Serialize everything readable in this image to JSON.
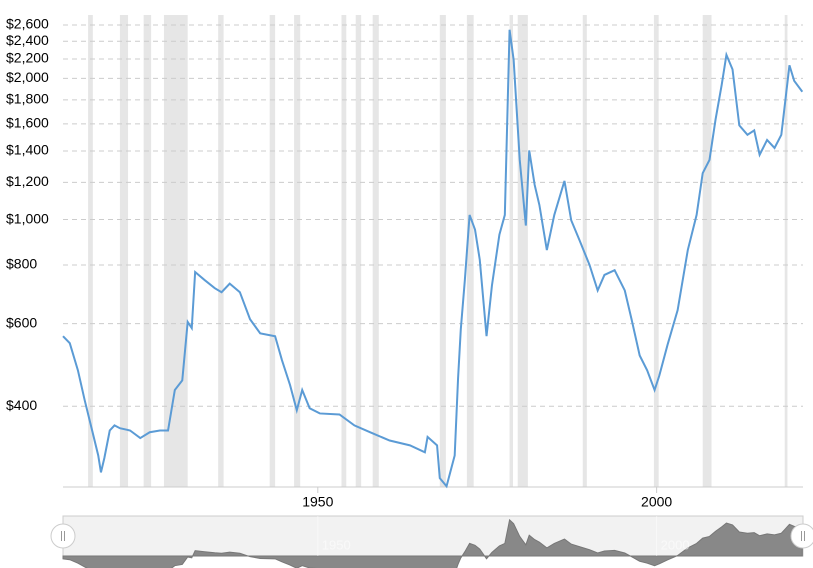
{
  "chart_data": {
    "type": "line",
    "log_scale": true,
    "grid": true,
    "xlim": [
      1912.4,
      2021.6
    ],
    "xticks": [
      1950,
      2000
    ],
    "ylim": [
      269,
      2730
    ],
    "yticks": [
      {
        "value": 400,
        "label": "$400"
      },
      {
        "value": 600,
        "label": "$600"
      },
      {
        "value": 800,
        "label": "$800"
      },
      {
        "value": 1000,
        "label": "$1,000"
      },
      {
        "value": 1200,
        "label": "$1,200"
      },
      {
        "value": 1400,
        "label": "$1,400"
      },
      {
        "value": 1600,
        "label": "$1,600"
      },
      {
        "value": 1800,
        "label": "$1,800"
      },
      {
        "value": 2000,
        "label": "$2,000"
      },
      {
        "value": 2200,
        "label": "$2,200"
      },
      {
        "value": 2400,
        "label": "$2,400"
      },
      {
        "value": 2600,
        "label": "$2,600"
      }
    ],
    "recession_color": "#e6e6e6",
    "recessions": [
      [
        1916.1,
        1916.8
      ],
      [
        1920.8,
        1922.0
      ],
      [
        1924.3,
        1925.4
      ],
      [
        1927.3,
        1930.8
      ],
      [
        1935.3,
        1936.1
      ],
      [
        1942.9,
        1943.7
      ],
      [
        1946.5,
        1947.4
      ],
      [
        1953.5,
        1954.2
      ],
      [
        1955.6,
        1956.4
      ],
      [
        1958.1,
        1959.0
      ],
      [
        1968.0,
        1968.9
      ],
      [
        1972.0,
        1973.0
      ],
      [
        1978.3,
        1978.8
      ],
      [
        1979.5,
        1981.0
      ],
      [
        1989.1,
        1989.7
      ],
      [
        1999.6,
        2000.3
      ],
      [
        2006.8,
        2008.1
      ],
      [
        2018.9,
        2019.3
      ]
    ],
    "series": [
      {
        "color": "#5b9bd5",
        "x": [
          1912.4,
          1913.4,
          1914.6,
          1915.6,
          1916.7,
          1917.6,
          1918,
          1918.5,
          1919.3,
          1920,
          1920.8,
          1922.3,
          1923.8,
          1925.2,
          1926.7,
          1927.9,
          1928.9,
          1930,
          1930.8,
          1931.4,
          1931.9,
          1933.3,
          1934.8,
          1935.8,
          1937,
          1938.5,
          1940,
          1941.5,
          1943.7,
          1944.7,
          1945.9,
          1946.9,
          1947.7,
          1948.8,
          1950.3,
          1953.2,
          1955.4,
          1957.7,
          1960.6,
          1963.6,
          1965.8,
          1966.2,
          1967.6,
          1968,
          1969,
          1970.2,
          1970.7,
          1971.1,
          1971.7,
          1972.4,
          1973.2,
          1973.9,
          1974.9,
          1975.7,
          1976.8,
          1977.6,
          1978.3,
          1978.9,
          1979.8,
          1980.7,
          1981.2,
          1982,
          1982.7,
          1983.8,
          1984.9,
          1986.4,
          1987.4,
          1988.6,
          1990.1,
          1991.3,
          1992.3,
          1993.8,
          1995.3,
          1996.3,
          1997.5,
          1998.6,
          1999.7,
          2000.4,
          2001.6,
          2003.1,
          2004.6,
          2005.9,
          2006.8,
          2007.8,
          2008.7,
          2009.6,
          2010.3,
          2011.2,
          2012.2,
          2013.4,
          2014.4,
          2015.2,
          2016.3,
          2017.4,
          2018.4,
          2019,
          2019.6,
          2020.3,
          2021.5
        ],
        "values": [
          564,
          545,
          477,
          412,
          355,
          314,
          289,
          310,
          355,
          364,
          359,
          355,
          342,
          352,
          355,
          355,
          433,
          454,
          605,
          587,
          773,
          743,
          714,
          700,
          730,
          700,
          613,
          572,
          564,
          502,
          444,
          392,
          433,
          396,
          386,
          384,
          364,
          352,
          338,
          330,
          319,
          344,
          330,
          281,
          270,
          314,
          459,
          583,
          743,
          1023,
          952,
          821,
          564,
          724,
          929,
          1023,
          2539,
          2190,
          1340,
          971,
          1404,
          1186,
          1074,
          861,
          1023,
          1209,
          996,
          905,
          800,
          706,
          762,
          780,
          706,
          613,
          513,
          477,
          433,
          465,
          540,
          641,
          861,
          1023,
          1256,
          1340,
          1636,
          1937,
          2245,
          2090,
          1588,
          1516,
          1549,
          1374,
          1478,
          1421,
          1516,
          1797,
          2133,
          1976,
          1873
        ]
      }
    ]
  }
}
